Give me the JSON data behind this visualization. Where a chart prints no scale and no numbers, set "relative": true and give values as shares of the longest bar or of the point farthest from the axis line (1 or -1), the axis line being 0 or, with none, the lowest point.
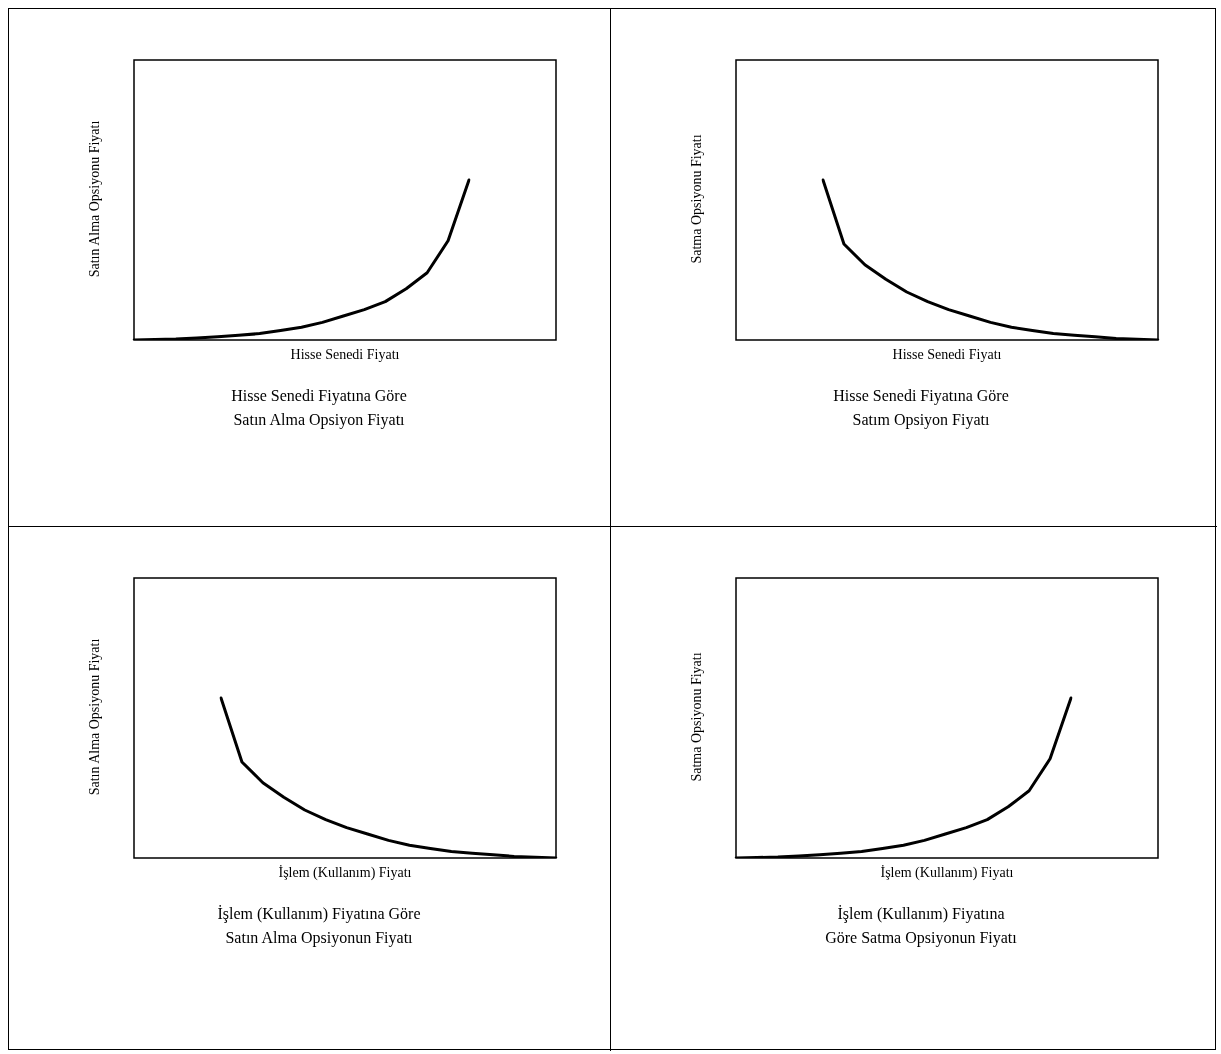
{
  "chart_data": [
    {
      "type": "line",
      "title": "Hisse Senedi Fiyatına Göre\nSatın Alma Opsiyon Fiyatı",
      "xlabel": "Hisse Senedi Fiyatı",
      "ylabel": "Satın Alma Opsiyonu Fiyatı",
      "relative": true,
      "tick_labels": false,
      "color": "#000000",
      "categories": [
        null,
        null,
        null,
        null,
        null,
        null,
        null,
        null,
        null,
        null,
        null,
        null,
        null,
        null,
        null,
        null,
        null
      ],
      "values": [
        0,
        0.003,
        0.006,
        0.012,
        0.02,
        0.03,
        0.04,
        0.06,
        0.08,
        0.11,
        0.15,
        0.19,
        0.24,
        0.32,
        0.42,
        0.62,
        1
      ]
    },
    {
      "type": "line",
      "title": "Hisse Senedi Fiyatına Göre\nSatım Opsiyon Fiyatı",
      "xlabel": "Hisse Senedi Fiyatı",
      "ylabel": "Satma Opsiyonu Fiyatı",
      "relative": true,
      "tick_labels": false,
      "color": "#000000",
      "categories": [
        null,
        null,
        null,
        null,
        null,
        null,
        null,
        null,
        null,
        null,
        null,
        null,
        null,
        null,
        null,
        null,
        null
      ],
      "values": [
        1,
        0.6,
        0.47,
        0.38,
        0.3,
        0.24,
        0.19,
        0.15,
        0.11,
        0.08,
        0.06,
        0.04,
        0.03,
        0.02,
        0.01,
        0.004,
        0
      ]
    },
    {
      "type": "line",
      "title": "İşlem (Kullanım) Fiyatına Göre\nSatın Alma Opsiyonun Fiyatı",
      "xlabel": "İşlem (Kullanım) Fiyatı",
      "ylabel": "Satın Alma Opsiyonu Fiyatı",
      "relative": true,
      "tick_labels": false,
      "color": "#000000",
      "categories": [
        null,
        null,
        null,
        null,
        null,
        null,
        null,
        null,
        null,
        null,
        null,
        null,
        null,
        null,
        null,
        null,
        null
      ],
      "values": [
        1,
        0.6,
        0.47,
        0.38,
        0.3,
        0.24,
        0.19,
        0.15,
        0.11,
        0.08,
        0.06,
        0.04,
        0.03,
        0.02,
        0.01,
        0.004,
        0
      ]
    },
    {
      "type": "line",
      "title": "İşlem (Kullanım) Fiyatına\nGöre Satma Opsiyonun Fiyatı",
      "xlabel": "İşlem (Kullanım) Fiyatı",
      "ylabel": "Satma Opsiyonu Fiyatı",
      "relative": true,
      "tick_labels": false,
      "color": "#000000",
      "categories": [
        null,
        null,
        null,
        null,
        null,
        null,
        null,
        null,
        null,
        null,
        null,
        null,
        null,
        null,
        null,
        null,
        null
      ],
      "values": [
        0,
        0.003,
        0.006,
        0.012,
        0.02,
        0.03,
        0.04,
        0.06,
        0.08,
        0.11,
        0.15,
        0.19,
        0.24,
        0.32,
        0.42,
        0.62,
        1
      ]
    }
  ]
}
